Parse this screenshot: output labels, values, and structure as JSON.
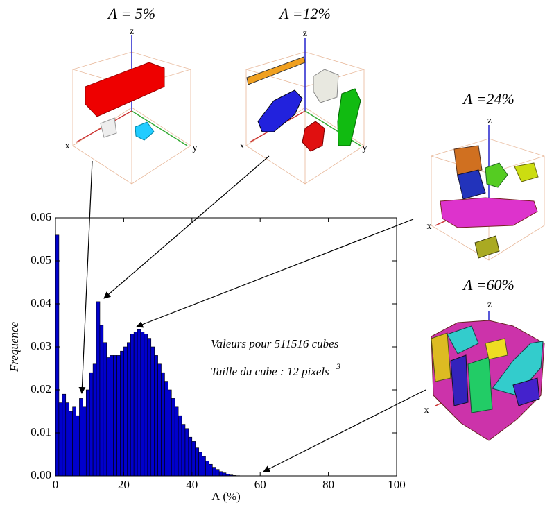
{
  "chart_data": {
    "type": "histogram",
    "xlabel": "Λ (%)",
    "ylabel": "Frequence",
    "bins": [
      0,
      1,
      2,
      3,
      4,
      5,
      6,
      7,
      8,
      9,
      10,
      11,
      12,
      13,
      14,
      15,
      16,
      17,
      18,
      19,
      20,
      21,
      22,
      23,
      24,
      25,
      26,
      27,
      28,
      29,
      30,
      31,
      32,
      33,
      34,
      35,
      36,
      37,
      38,
      39,
      40,
      41,
      42,
      43,
      44,
      45,
      46,
      47,
      48,
      49,
      50,
      51,
      52,
      53,
      54,
      55,
      56
    ],
    "values": [
      0.056,
      0.017,
      0.019,
      0.017,
      0.015,
      0.016,
      0.014,
      0.018,
      0.016,
      0.02,
      0.024,
      0.026,
      0.0405,
      0.035,
      0.031,
      0.0275,
      0.028,
      0.028,
      0.028,
      0.029,
      0.03,
      0.031,
      0.033,
      0.0335,
      0.034,
      0.0335,
      0.033,
      0.032,
      0.03,
      0.028,
      0.026,
      0.024,
      0.022,
      0.02,
      0.018,
      0.016,
      0.014,
      0.012,
      0.011,
      0.009,
      0.008,
      0.0065,
      0.0055,
      0.0045,
      0.0035,
      0.0027,
      0.002,
      0.0015,
      0.001,
      0.0007,
      0.0004,
      0.0002,
      0.0001,
      5e-05,
      2e-05,
      1e-05
    ],
    "color": "#0000cc",
    "xlim": [
      0,
      100
    ],
    "ylim": [
      0,
      0.06
    ],
    "xticks": [
      0,
      20,
      40,
      60,
      80,
      100
    ],
    "yticks": [
      {
        "value": 0,
        "label": "0.00"
      },
      0.01,
      0.02,
      0.03,
      0.04,
      0.05,
      0.06
    ],
    "grid": false,
    "annotations": [
      {
        "text": "Valeurs pour 511516 cubes"
      },
      {
        "text": "Taille du cube : 12 pixels",
        "superscript": "3"
      }
    ],
    "insets": [
      {
        "label": "Λ = 5%",
        "axes": [
          "x",
          "y",
          "z"
        ]
      },
      {
        "label": "Λ =12%",
        "axes": [
          "x",
          "y",
          "z"
        ]
      },
      {
        "label": "Λ =24%",
        "axes": [
          "x",
          "z"
        ]
      },
      {
        "label": "Λ =60%",
        "axes": [
          "x",
          "z"
        ]
      }
    ]
  }
}
